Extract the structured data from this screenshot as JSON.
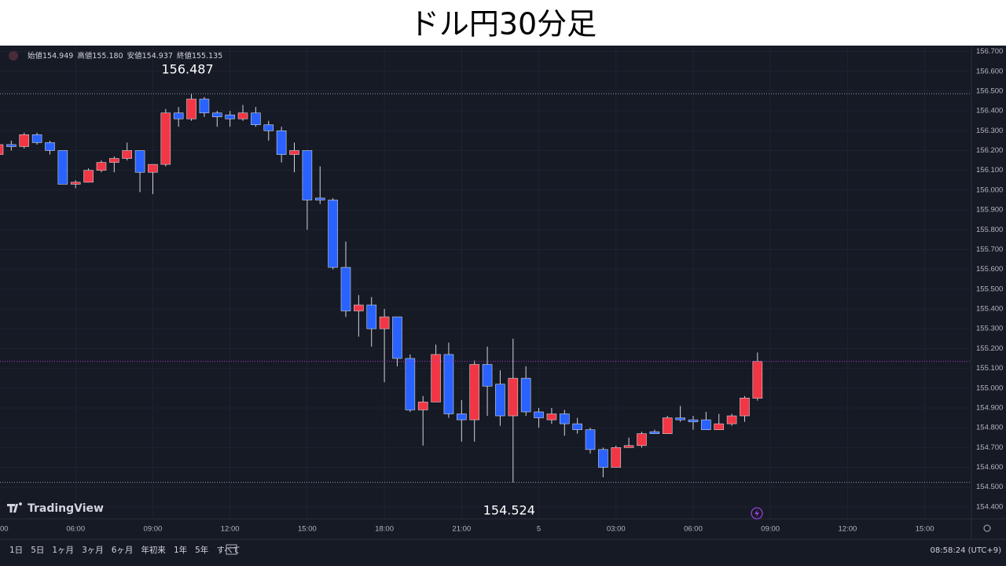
{
  "chart_data": {
    "type": "candlestick",
    "title": "ドル円30分足",
    "categories": [
      "00",
      null,
      null,
      null,
      null,
      null,
      "06:00",
      null,
      null,
      null,
      null,
      null,
      "09:00",
      null,
      null,
      null,
      null,
      null,
      "12:00",
      null,
      null,
      null,
      null,
      null,
      "15:00",
      null,
      null,
      null,
      null,
      null,
      "18:00",
      null,
      null,
      null,
      null,
      null,
      "21:00",
      null,
      null,
      null,
      null,
      null,
      "5",
      null,
      null,
      null,
      null,
      null,
      "03:00",
      null,
      null,
      null,
      null,
      null,
      "06:00",
      null,
      null,
      null,
      null,
      null,
      "09:00",
      null,
      null,
      null,
      null,
      null,
      "12:00",
      null,
      null,
      null,
      null,
      null,
      "15:00",
      null,
      null,
      null
    ],
    "open": [
      156.18,
      156.23,
      156.22,
      156.28,
      156.24,
      156.2,
      156.03,
      156.04,
      156.1,
      156.14,
      156.16,
      156.2,
      156.09,
      156.13,
      156.39,
      156.36,
      156.46,
      156.39,
      156.38,
      156.36,
      156.39,
      156.33,
      156.3,
      156.18,
      156.2,
      155.96,
      155.95,
      155.61,
      155.39,
      155.42,
      155.3,
      155.36,
      155.15,
      154.89,
      154.93,
      155.17,
      154.87,
      154.84,
      155.12,
      155.02,
      154.86,
      155.05,
      154.88,
      154.84,
      154.87,
      154.82,
      154.79,
      154.69,
      154.6,
      154.7,
      154.71,
      154.78,
      154.77,
      154.85,
      154.84,
      154.84,
      154.79,
      154.82,
      154.86,
      154.949,
      null,
      null,
      null,
      null,
      null,
      null,
      null,
      null,
      null,
      null,
      null,
      null,
      null,
      null,
      null,
      null
    ],
    "high": [
      156.24,
      156.25,
      156.29,
      156.29,
      156.25,
      156.2,
      156.05,
      156.11,
      156.15,
      156.17,
      156.24,
      156.2,
      156.13,
      156.41,
      156.42,
      156.487,
      156.47,
      156.4,
      156.4,
      156.43,
      156.42,
      156.35,
      156.32,
      156.24,
      156.2,
      156.12,
      155.96,
      155.74,
      155.47,
      155.46,
      155.4,
      155.36,
      155.17,
      154.96,
      155.22,
      155.23,
      154.94,
      155.14,
      155.21,
      155.09,
      155.25,
      155.11,
      154.9,
      154.9,
      154.89,
      154.85,
      154.8,
      154.7,
      154.71,
      154.75,
      154.78,
      154.79,
      154.86,
      154.91,
      154.86,
      154.88,
      154.87,
      154.87,
      154.96,
      155.18,
      null,
      null,
      null,
      null,
      null,
      null,
      null,
      null,
      null,
      null,
      null,
      null,
      null,
      null,
      null,
      null
    ],
    "low": [
      156.17,
      156.2,
      156.21,
      156.23,
      156.18,
      156.03,
      156.01,
      156.04,
      156.09,
      156.09,
      156.15,
      155.99,
      155.98,
      156.12,
      156.32,
      156.35,
      156.37,
      156.32,
      156.32,
      156.35,
      156.32,
      156.25,
      156.14,
      156.09,
      155.8,
      155.93,
      155.6,
      155.36,
      155.26,
      155.21,
      155.03,
      155.11,
      154.88,
      154.71,
      154.93,
      154.85,
      154.73,
      154.73,
      154.86,
      154.81,
      154.524,
      154.86,
      154.8,
      154.82,
      154.76,
      154.77,
      154.67,
      154.55,
      154.6,
      154.7,
      154.7,
      154.77,
      154.77,
      154.83,
      154.79,
      154.79,
      154.79,
      154.81,
      154.83,
      154.937,
      null,
      null,
      null,
      null,
      null,
      null,
      null,
      null,
      null,
      null,
      null,
      null,
      null,
      null,
      null,
      null
    ],
    "close": [
      156.23,
      156.22,
      156.28,
      156.24,
      156.2,
      156.03,
      156.04,
      156.1,
      156.14,
      156.16,
      156.2,
      156.09,
      156.13,
      156.39,
      156.36,
      156.46,
      156.39,
      156.37,
      156.36,
      156.39,
      156.33,
      156.3,
      156.18,
      156.2,
      155.95,
      155.95,
      155.61,
      155.39,
      155.42,
      155.3,
      155.36,
      155.15,
      154.89,
      154.93,
      155.17,
      154.87,
      154.84,
      155.12,
      155.01,
      154.86,
      155.05,
      154.88,
      154.85,
      154.87,
      154.82,
      154.79,
      154.69,
      154.6,
      154.7,
      154.71,
      154.77,
      154.77,
      154.85,
      154.84,
      154.83,
      154.79,
      154.82,
      154.86,
      154.95,
      155.135,
      null,
      null,
      null,
      null,
      null,
      null,
      null,
      null,
      null,
      null,
      null,
      null,
      null,
      null,
      null,
      null
    ],
    "up_color": "#f23645",
    "down_color": "#2962ff",
    "ylim": [
      154.34,
      156.73
    ],
    "yticks": [
      {
        "value": 156.7,
        "label": "156.700"
      },
      {
        "value": 156.6,
        "label": "156.600"
      },
      {
        "value": 156.5,
        "label": "156.500"
      },
      {
        "value": 156.4,
        "label": "156.400"
      },
      {
        "value": 156.3,
        "label": "156.300"
      },
      {
        "value": 156.2,
        "label": "156.200"
      },
      {
        "value": 156.1,
        "label": "156.100"
      },
      {
        "value": 156.0,
        "label": "156.000"
      },
      {
        "value": 155.9,
        "label": "155.900"
      },
      {
        "value": 155.8,
        "label": "155.800"
      },
      {
        "value": 155.7,
        "label": "155.700"
      },
      {
        "value": 155.6,
        "label": "155.600"
      },
      {
        "value": 155.5,
        "label": "155.500"
      },
      {
        "value": 155.4,
        "label": "155.400"
      },
      {
        "value": 155.3,
        "label": "155.300"
      },
      {
        "value": 155.2,
        "label": "155.200"
      },
      {
        "value": 155.1,
        "label": "155.100"
      },
      {
        "value": 155.0,
        "label": "155.000"
      },
      {
        "value": 154.9,
        "label": "154.900"
      },
      {
        "value": 154.8,
        "label": "154.800"
      },
      {
        "value": 154.7,
        "label": "154.700"
      },
      {
        "value": 154.6,
        "label": "154.600"
      },
      {
        "value": 154.5,
        "label": "154.500"
      },
      {
        "value": 154.4,
        "label": "154.400"
      }
    ],
    "grid": true,
    "status_line": {
      "labels": [
        "始値",
        "高値",
        "安値",
        "終値"
      ],
      "value_labels": [
        "154.949",
        "155.180",
        "154.937",
        "155.135"
      ]
    },
    "logo": "TradingView",
    "toolbar": {
      "ranges": [
        "1日",
        "5日",
        "1ヶ月",
        "3ヶ月",
        "6ヶ月",
        "年初来",
        "1年",
        "5年",
        "すべて"
      ],
      "clock": "08:58:24 (UTC+9)"
    }
  }
}
